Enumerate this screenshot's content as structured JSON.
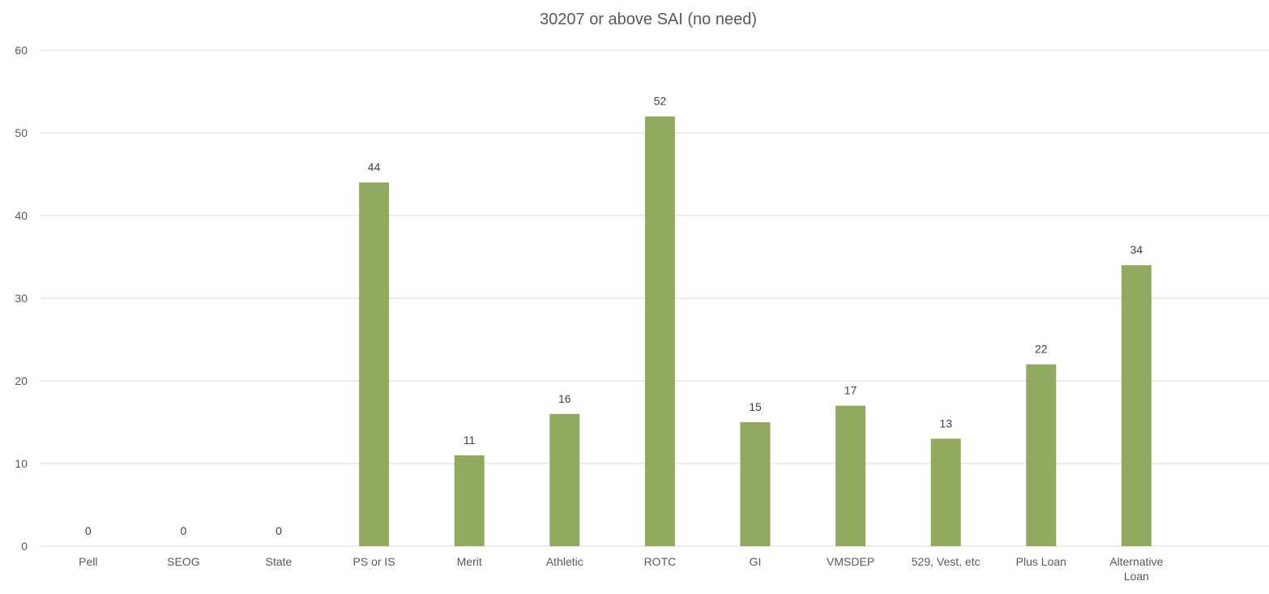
{
  "chart_data": {
    "type": "bar",
    "title": "30207 or above SAI (no need)",
    "xlabel": "",
    "ylabel": "",
    "categories": [
      "Pell",
      "SEOG",
      "State",
      "PS or IS",
      "Merit",
      "Athletic",
      "ROTC",
      "GI",
      "VMSDEP",
      "529, Vest, etc",
      "Plus Loan",
      "Alternative Loan"
    ],
    "series": [
      {
        "values": [
          0,
          0,
          0,
          44,
          11,
          16,
          52,
          15,
          17,
          13,
          22,
          34
        ]
      }
    ],
    "ylim": [
      0,
      60
    ],
    "yticks": [
      0,
      10,
      20,
      30,
      40,
      50,
      60
    ],
    "grid": true,
    "legend": "none",
    "data_labels": true,
    "bar_color": "#92AA60",
    "grid_color": "#D9D9D9",
    "text_color": "#595959",
    "label_color": "#404040"
  }
}
